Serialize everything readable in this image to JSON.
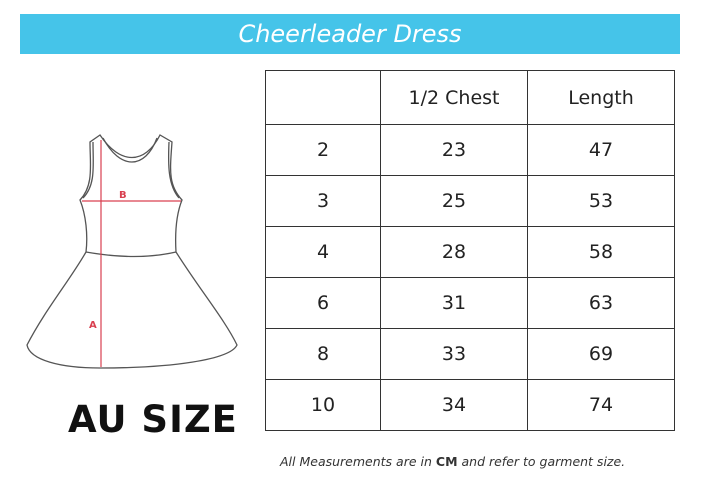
{
  "title": "Cheerleader Dress",
  "diagram": {
    "label_a": "A",
    "label_b": "B",
    "accent_color": "#d94050"
  },
  "size_label": "AU SIZE",
  "table": {
    "headers": [
      "",
      "1/2 Chest",
      "Length"
    ],
    "rows": [
      [
        "2",
        "23",
        "47"
      ],
      [
        "3",
        "25",
        "53"
      ],
      [
        "4",
        "28",
        "58"
      ],
      [
        "6",
        "31",
        "63"
      ],
      [
        "8",
        "33",
        "69"
      ],
      [
        "10",
        "34",
        "74"
      ]
    ]
  },
  "note": {
    "before": "All Measurements are in ",
    "bold": "CM",
    "after": " and refer to garment size."
  },
  "banner_color": "#45c4e9"
}
